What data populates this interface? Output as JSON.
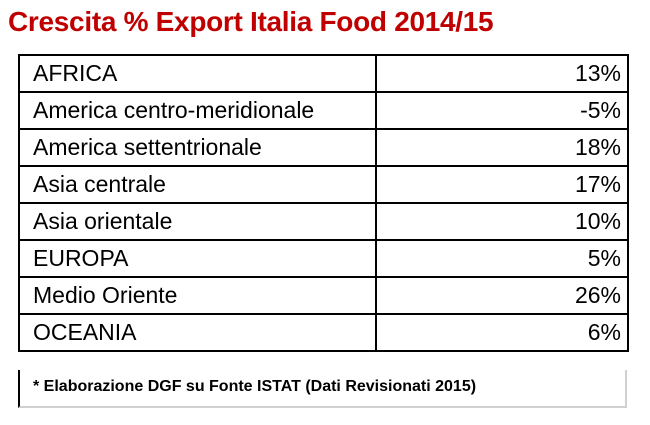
{
  "chart_data": {
    "type": "table",
    "title": "Crescita % Export Italia Food 2014/15",
    "rows": [
      {
        "region": "AFRICA",
        "value": "13%"
      },
      {
        "region": "America centro-meridionale",
        "value": "-5%"
      },
      {
        "region": "America settentrionale",
        "value": "18%"
      },
      {
        "region": "Asia centrale",
        "value": "17%"
      },
      {
        "region": "Asia orientale",
        "value": "10%"
      },
      {
        "region": "EUROPA",
        "value": "5%"
      },
      {
        "region": "Medio Oriente",
        "value": "26%"
      },
      {
        "region": "OCEANIA",
        "value": "6%"
      }
    ],
    "values": [
      13,
      -5,
      18,
      17,
      10,
      5,
      26,
      6
    ],
    "note": "* Elaborazione DGF su Fonte ISTAT (Dati Revisionati 2015)"
  },
  "colors": {
    "title": "#c00000",
    "border": "#000000"
  }
}
